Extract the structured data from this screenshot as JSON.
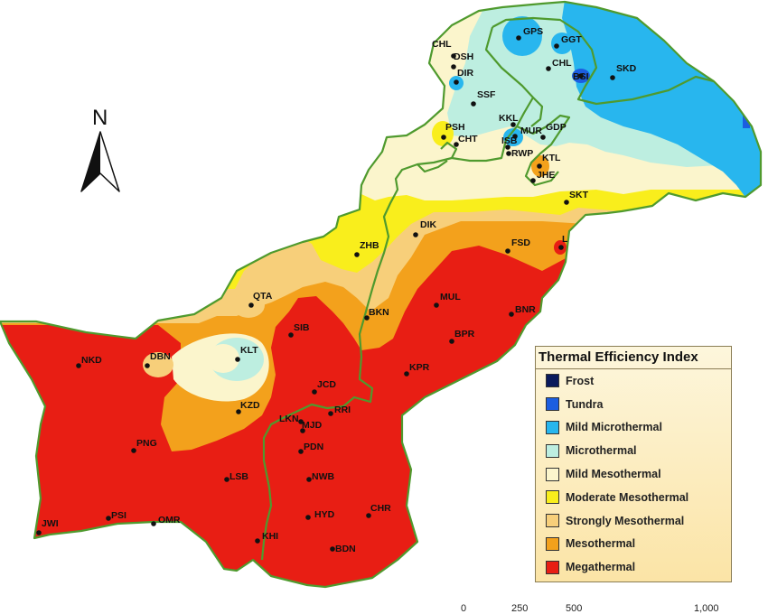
{
  "compass": {
    "label": "N"
  },
  "stations": [
    {
      "code": "GPS"
    },
    {
      "code": "GGT"
    },
    {
      "code": "CHL"
    },
    {
      "code": "DSH"
    },
    {
      "code": "DIR"
    },
    {
      "code": "CHL"
    },
    {
      "code": "BSI"
    },
    {
      "code": "SKD"
    },
    {
      "code": "SSF"
    },
    {
      "code": "PSH"
    },
    {
      "code": "KKL"
    },
    {
      "code": "MUR"
    },
    {
      "code": "GDP"
    },
    {
      "code": "CHT"
    },
    {
      "code": "ISB"
    },
    {
      "code": "RWP"
    },
    {
      "code": "KTL"
    },
    {
      "code": "JHE"
    },
    {
      "code": "SKT"
    },
    {
      "code": "DIK"
    },
    {
      "code": "ZHB"
    },
    {
      "code": "FSD"
    },
    {
      "code": "L"
    },
    {
      "code": "QTA"
    },
    {
      "code": "MUL"
    },
    {
      "code": "BNR"
    },
    {
      "code": "BKN"
    },
    {
      "code": "SIB"
    },
    {
      "code": "BPR"
    },
    {
      "code": "KLT"
    },
    {
      "code": "DBN"
    },
    {
      "code": "NKD"
    },
    {
      "code": "KPR"
    },
    {
      "code": "JCD"
    },
    {
      "code": "KZD"
    },
    {
      "code": "RRI"
    },
    {
      "code": "LKN"
    },
    {
      "code": "MJD"
    },
    {
      "code": "PNG"
    },
    {
      "code": "PDN"
    },
    {
      "code": "LSB"
    },
    {
      "code": "NWB"
    },
    {
      "code": "JWI"
    },
    {
      "code": "PSI"
    },
    {
      "code": "OMR"
    },
    {
      "code": "HYD"
    },
    {
      "code": "CHR"
    },
    {
      "code": "KHI"
    },
    {
      "code": "BDN"
    }
  ],
  "legend": {
    "title": "Thermal Efficiency  Index",
    "items": [
      {
        "label": "Frost",
        "color": "#0a1a5c"
      },
      {
        "label": "Tundra",
        "color": "#1c5ee0"
      },
      {
        "label": "Mild Microthermal",
        "color": "#28b6ee"
      },
      {
        "label": "Microthermal",
        "color": "#bdeee0"
      },
      {
        "label": "Mild Mesothermal",
        "color": "#fbf5cc"
      },
      {
        "label": "Moderate Mesothermal",
        "color": "#f9ee1c"
      },
      {
        "label": "Strongly Mesothermal",
        "color": "#f7cf7a"
      },
      {
        "label": "Mesothermal",
        "color": "#f3a11c"
      },
      {
        "label": "Megathermal",
        "color": "#e81e14"
      }
    ]
  },
  "scale": {
    "ticks": [
      "0",
      "250",
      "500",
      "1,000"
    ]
  }
}
